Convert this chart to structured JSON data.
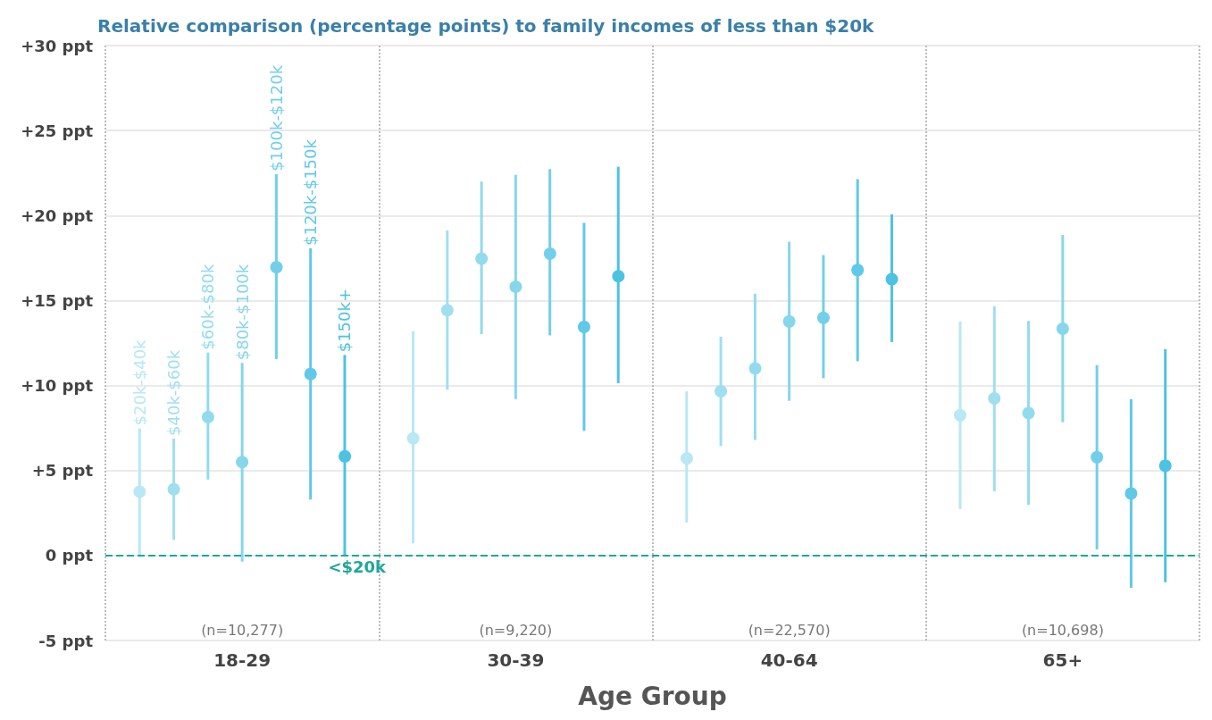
{
  "chart_data": {
    "type": "scatter",
    "title": "Relative comparison (percentage points) to family incomes of less than $20k",
    "xlabel": "Age Group",
    "categories": [
      "18-29",
      "30-39",
      "40-64",
      "65+"
    ],
    "series": [
      {
        "name": "$20k-$40k",
        "color": "#b8e8f4",
        "values": [
          3.8,
          6.95,
          5.8,
          8.25
        ],
        "errors": [
          [
            0,
            7.48
          ],
          [
            0.72,
            13.2
          ],
          [
            1.94,
            9.66
          ],
          [
            2.73,
            13.77
          ]
        ]
      },
      {
        "name": "$40k-$60k",
        "color": "#a0dff0",
        "values": [
          3.9,
          14.43,
          9.66,
          9.24
        ],
        "errors": [
          [
            0.92,
            6.88
          ],
          [
            9.75,
            19.12
          ],
          [
            6.44,
            12.87
          ],
          [
            3.78,
            14.67
          ]
        ]
      },
      {
        "name": "$60k-$80k",
        "color": "#92dbee",
        "values": [
          8.2,
          17.52,
          11.09,
          8.38
        ],
        "errors": [
          [
            4.47,
            11.94
          ],
          [
            13.02,
            22.0
          ],
          [
            6.8,
            15.4
          ],
          [
            2.98,
            13.8
          ]
        ]
      },
      {
        "name": "$80k-$100k",
        "color": "#86d6ec",
        "values": [
          5.5,
          15.81,
          13.77,
          13.34
        ],
        "errors": [
          [
            -0.36,
            11.33
          ],
          [
            9.2,
            22.4
          ],
          [
            9.1,
            18.46
          ],
          [
            7.84,
            18.86
          ]
        ]
      },
      {
        "name": "$100k-$120k",
        "color": "#72cfea",
        "values": [
          17.03,
          17.84,
          14.04,
          5.78
        ],
        "errors": [
          [
            11.56,
            22.44
          ],
          [
            12.95,
            22.73
          ],
          [
            10.43,
            17.67
          ],
          [
            0.36,
            11.2
          ]
        ]
      },
      {
        "name": "$120k-$150k",
        "color": "#60c9e7",
        "values": [
          10.68,
          13.45,
          16.79,
          3.65
        ],
        "errors": [
          [
            3.29,
            18.07
          ],
          [
            7.33,
            19.57
          ],
          [
            11.43,
            22.14
          ],
          [
            -1.9,
            9.2
          ]
        ]
      },
      {
        "name": "$150k+",
        "color": "#4cc3e2",
        "values": [
          5.9,
          16.51,
          16.31,
          5.28
        ],
        "errors": [
          [
            0,
            11.8
          ],
          [
            10.14,
            22.87
          ],
          [
            12.56,
            20.07
          ],
          [
            -1.57,
            12.13
          ]
        ]
      }
    ],
    "ylim": [
      -5,
      30
    ],
    "yticks": [
      {
        "value": -5,
        "label": "-5 ppt"
      },
      {
        "value": 0,
        "label": "0 ppt"
      },
      {
        "value": 5,
        "label": "+5 ppt"
      },
      {
        "value": 10,
        "label": "+10 ppt"
      },
      {
        "value": 15,
        "label": "+15 ppt"
      },
      {
        "value": 20,
        "label": "+20 ppt"
      },
      {
        "value": 25,
        "label": "+25 ppt"
      },
      {
        "value": 30,
        "label": "+30 ppt"
      }
    ],
    "ref_lines": [
      {
        "axis": "y",
        "value": 0,
        "label": "<$20k",
        "color": "#1fa898",
        "line_style": "dashed"
      }
    ],
    "annotations": [
      "(n=10,277)",
      "(n=9,220)",
      "(n=22,570)",
      "(n=10,698)"
    ],
    "grid": "y",
    "legend": false,
    "marker": "circle"
  }
}
